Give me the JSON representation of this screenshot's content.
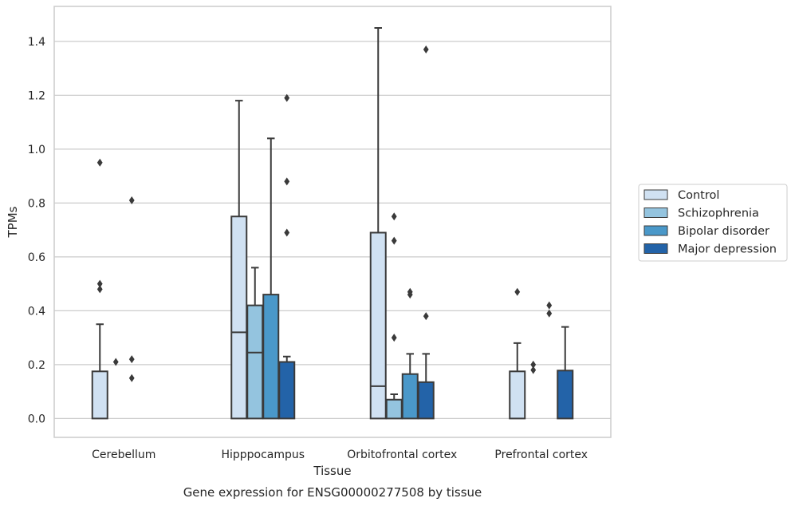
{
  "chart_data": {
    "type": "box",
    "title": "",
    "caption": "Gene expression for ENSG00000277508 by tissue",
    "xlabel": "Tissue",
    "ylabel": "TPMs",
    "ylim": [
      -0.07,
      1.53
    ],
    "yticks": [
      0.0,
      0.2,
      0.4,
      0.6,
      0.8,
      1.0,
      1.2,
      1.4
    ],
    "ytick_labels": [
      "0.0",
      "0.2",
      "0.4",
      "0.6",
      "0.8",
      "1.0",
      "1.2",
      "1.4"
    ],
    "grid": true,
    "legend_position": "right",
    "categories": [
      "Cerebellum",
      "Hipppocampus",
      "Orbitofrontal cortex",
      "Prefrontal cortex"
    ],
    "series": [
      {
        "name": "Control",
        "color": "#d0e1f2",
        "boxes": [
          {
            "q1": 0.0,
            "median": 0.0,
            "q3": 0.175,
            "whisker_low": 0.0,
            "whisker_high": 0.35,
            "outliers": [
              0.95,
              0.5,
              0.48
            ]
          },
          {
            "q1": 0.0,
            "median": 0.32,
            "q3": 0.75,
            "whisker_low": 0.0,
            "whisker_high": 1.18,
            "outliers": []
          },
          {
            "q1": 0.0,
            "median": 0.12,
            "q3": 0.69,
            "whisker_low": 0.0,
            "whisker_high": 1.45,
            "outliers": []
          },
          {
            "q1": 0.0,
            "median": 0.0,
            "q3": 0.175,
            "whisker_low": 0.0,
            "whisker_high": 0.28,
            "outliers": [
              0.47
            ]
          }
        ]
      },
      {
        "name": "Schizophrenia",
        "color": "#94c4df",
        "boxes": [
          {
            "q1": 0.0,
            "median": 0.0,
            "q3": 0.0,
            "whisker_low": 0.0,
            "whisker_high": 0.0,
            "outliers": [
              0.21
            ]
          },
          {
            "q1": 0.0,
            "median": 0.245,
            "q3": 0.42,
            "whisker_low": 0.0,
            "whisker_high": 0.56,
            "outliers": []
          },
          {
            "q1": 0.0,
            "median": 0.0,
            "q3": 0.07,
            "whisker_low": 0.0,
            "whisker_high": 0.09,
            "outliers": [
              0.75,
              0.66,
              0.3
            ]
          },
          {
            "q1": 0.0,
            "median": 0.0,
            "q3": 0.0,
            "whisker_low": 0.0,
            "whisker_high": 0.0,
            "outliers": [
              0.2,
              0.18
            ]
          }
        ]
      },
      {
        "name": "Bipolar disorder",
        "color": "#4a98c9",
        "boxes": [
          {
            "q1": 0.0,
            "median": 0.0,
            "q3": 0.0,
            "whisker_low": 0.0,
            "whisker_high": 0.0,
            "outliers": [
              0.81,
              0.22,
              0.15
            ]
          },
          {
            "q1": 0.0,
            "median": 0.0,
            "q3": 0.46,
            "whisker_low": 0.0,
            "whisker_high": 1.04,
            "outliers": []
          },
          {
            "q1": 0.0,
            "median": 0.0,
            "q3": 0.165,
            "whisker_low": 0.0,
            "whisker_high": 0.24,
            "outliers": [
              0.47,
              0.46
            ]
          },
          {
            "q1": 0.0,
            "median": 0.0,
            "q3": 0.0,
            "whisker_low": 0.0,
            "whisker_high": 0.0,
            "outliers": [
              0.42,
              0.39
            ]
          }
        ]
      },
      {
        "name": "Major depression",
        "color": "#2363a8",
        "boxes": [
          {
            "q1": 0.0,
            "median": 0.0,
            "q3": 0.0,
            "whisker_low": 0.0,
            "whisker_high": 0.0,
            "outliers": []
          },
          {
            "q1": 0.0,
            "median": 0.0,
            "q3": 0.21,
            "whisker_low": 0.0,
            "whisker_high": 0.23,
            "outliers": [
              1.19,
              0.88,
              0.69
            ]
          },
          {
            "q1": 0.0,
            "median": 0.0,
            "q3": 0.135,
            "whisker_low": 0.0,
            "whisker_high": 0.24,
            "outliers": [
              1.37,
              0.38
            ]
          },
          {
            "q1": 0.0,
            "median": 0.0,
            "q3": 0.178,
            "whisker_low": 0.0,
            "whisker_high": 0.34,
            "outliers": []
          }
        ]
      }
    ]
  }
}
